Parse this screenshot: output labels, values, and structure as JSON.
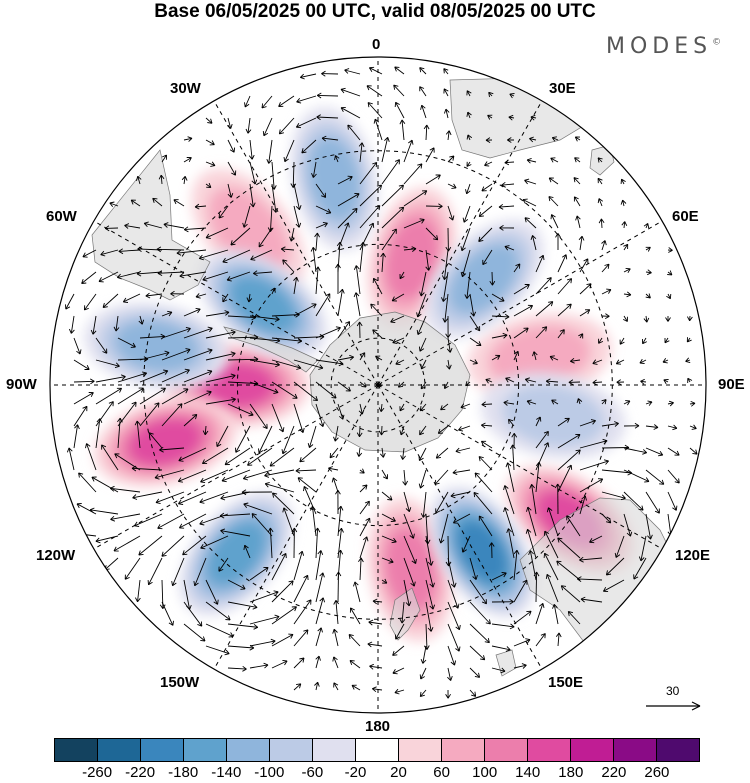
{
  "title": "Base 06/05/2025 00 UTC, valid 08/05/2025 00 UTC",
  "brand": "MODES",
  "brand_mark": "©",
  "lon_labels": {
    "top": "0",
    "top_left": "30W",
    "top_right": "30E",
    "upper_left": "60W",
    "upper_right": "60E",
    "left": "90W",
    "right": "90E",
    "lower_left": "120W",
    "lower_right": "120E",
    "bottom_left": "150W",
    "bottom_right": "150E",
    "bottom": "180"
  },
  "reference_vector": "30",
  "colorbar": {
    "labels": [
      "-260",
      "-220",
      "-180",
      "-140",
      "-100",
      "-60",
      "-20",
      "20",
      "60",
      "100",
      "140",
      "180",
      "220",
      "260"
    ],
    "colors": [
      "#13425f",
      "#1e6796",
      "#3a86bd",
      "#5fa2cd",
      "#8fb5dc",
      "#bccbe6",
      "#e0e0ef",
      "#ffffff",
      "#f9d4da",
      "#f5aac0",
      "#ec7eac",
      "#e04ba0",
      "#c01d94",
      "#8a0b86",
      "#4f0a6e"
    ]
  },
  "anomalies": [
    {
      "sign": "positive",
      "lon": 15,
      "lat": -62,
      "level": 3
    },
    {
      "sign": "positive",
      "lon": -40,
      "lat": -47,
      "level": 2
    },
    {
      "sign": "positive",
      "lon": -90,
      "lat": -60,
      "level": 4
    },
    {
      "sign": "positive",
      "lon": -105,
      "lat": -43,
      "level": 4
    },
    {
      "sign": "positive",
      "lon": 170,
      "lat": -50,
      "level": 3
    },
    {
      "sign": "positive",
      "lon": 125,
      "lat": -40,
      "level": 4
    },
    {
      "sign": "positive",
      "lon": 80,
      "lat": -55,
      "level": 2
    },
    {
      "sign": "negative",
      "lon": -12,
      "lat": -45,
      "level": 3
    },
    {
      "sign": "negative",
      "lon": -55,
      "lat": -60,
      "level": 4
    },
    {
      "sign": "negative",
      "lon": -80,
      "lat": -42,
      "level": 3
    },
    {
      "sign": "negative",
      "lon": 45,
      "lat": -58,
      "level": 3
    },
    {
      "sign": "negative",
      "lon": 148,
      "lat": -48,
      "level": 5
    },
    {
      "sign": "negative",
      "lon": -140,
      "lat": -43,
      "level": 4
    },
    {
      "sign": "negative",
      "lon": 100,
      "lat": -52,
      "level": 2
    }
  ]
}
